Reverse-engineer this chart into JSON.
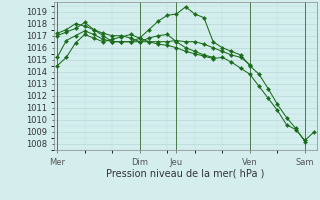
{
  "title": "Pression niveau de la mer( hPa )",
  "ylabel_ticks": [
    1008,
    1009,
    1010,
    1011,
    1012,
    1013,
    1014,
    1015,
    1016,
    1017,
    1018,
    1019
  ],
  "ylim": [
    1007.5,
    1019.8
  ],
  "xlim": [
    -0.3,
    28.3
  ],
  "background_color": "#d4eeee",
  "grid_color": "#b8d8d8",
  "line_color": "#1a6b1a",
  "vline_color": "#4a7a4a",
  "vline_positions": [
    0,
    9,
    13,
    21,
    27
  ],
  "x_tick_labels": [
    "Mer",
    "Dim",
    "Jeu",
    "Ven",
    "Sam"
  ],
  "x_tick_positions": [
    0,
    9,
    13,
    21,
    27
  ],
  "series": [
    [
      1014.5,
      1015.2,
      1016.4,
      1017.1,
      1016.8,
      1016.5,
      1016.7,
      1016.9,
      1017.1,
      1016.8,
      1016.5,
      1016.3,
      1016.2,
      1016.0,
      1015.7,
      1015.5,
      1015.3,
      1015.1,
      1015.2,
      1014.8,
      1014.3,
      1013.8,
      1012.8,
      1011.8,
      1010.8,
      1009.6,
      1009.2,
      1008.3,
      1009.0
    ],
    [
      1017.0,
      1017.3,
      1017.6,
      1018.1,
      1017.5,
      1017.0,
      1016.5,
      1016.5,
      1016.5,
      1016.8,
      1017.5,
      1018.2,
      1018.7,
      1018.8,
      1019.4,
      1018.8,
      1018.5,
      1016.5,
      1016.0,
      1015.7,
      1015.4,
      1014.5,
      1013.8,
      1012.6,
      1011.3,
      1010.2,
      1009.3,
      1008.2,
      null
    ],
    [
      1015.2,
      1016.6,
      1017.0,
      1017.4,
      1017.1,
      1016.7,
      1016.5,
      1016.5,
      1016.5,
      1016.5,
      1016.5,
      1016.5,
      1016.5,
      1016.6,
      1016.5,
      1016.5,
      1016.3,
      1016.0,
      1015.7,
      1015.4,
      1015.2,
      1014.6,
      null,
      null,
      null,
      null,
      null,
      null,
      null
    ],
    [
      1017.2,
      1017.5,
      1018.0,
      1017.8,
      1017.5,
      1017.2,
      1017.0,
      1017.0,
      1016.8,
      1016.5,
      1016.8,
      1017.0,
      1017.1,
      1016.5,
      1016.0,
      1015.7,
      1015.4,
      1015.2,
      null,
      null,
      null,
      null,
      null,
      null,
      null,
      null,
      null,
      null,
      null
    ]
  ]
}
